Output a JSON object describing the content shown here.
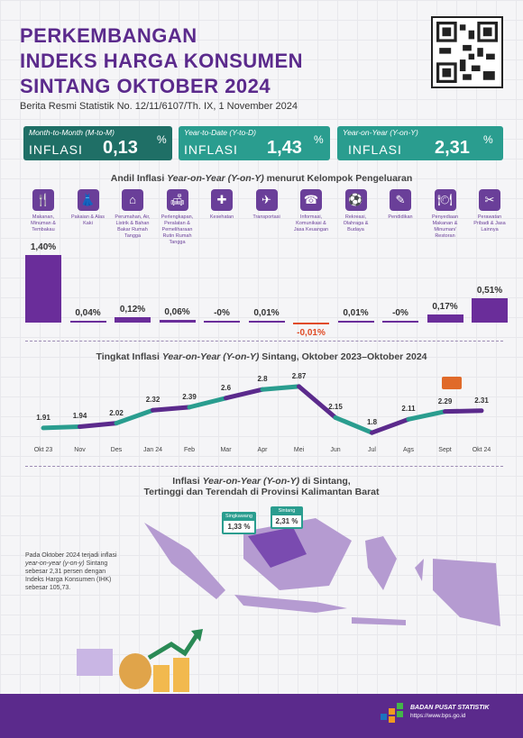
{
  "title": {
    "line1": "PERKEMBANGAN",
    "line2": "INDEKS HARGA KONSUMEN",
    "line3": "SINTANG OKTOBER 2024"
  },
  "subtitle": "Berita Resmi Statistik No. 12/11/6107/Th. IX, 1 November 2024",
  "cards": [
    {
      "label": "Month-to-Month (M-to-M)",
      "word": "INFLASI",
      "value": "0,13",
      "unit": "%"
    },
    {
      "label": "Year-to-Date (Y-to-D)",
      "word": "INFLASI",
      "value": "1,43",
      "unit": "%"
    },
    {
      "label": "Year-on-Year (Y-on-Y)",
      "word": "INFLASI",
      "value": "2,31",
      "unit": "%"
    }
  ],
  "andil_title_pre": "Andil Inflasi ",
  "andil_title_em": "Year-on-Year (Y-on-Y)",
  "andil_title_post": " menurut Kelompok Pengeluaran",
  "chart_data": [
    {
      "type": "bar",
      "categories": [
        "Makanan, Minuman & Tembakau",
        "Pakaian & Alas Kaki",
        "Perumahan, Air, Listrik & Bahan Bakar Rumah Tangga",
        "Perlengkapan, Peralatan & Pemeliharaan Rutin Rumah Tangga",
        "Kesehatan",
        "Transportasi",
        "Informasi, Komunikasi & Jasa Keuangan",
        "Rekreasi, Olahraga & Budaya",
        "Pendidikan",
        "Penyediaan Makanan & Minuman/ Restoran",
        "Perawatan Pribadi & Jasa Lainnya"
      ],
      "values": [
        1.4,
        0.04,
        0.12,
        0.06,
        0,
        0.01,
        -0.01,
        0.01,
        0,
        0.17,
        0.51
      ],
      "labels": [
        "1,40%",
        "0,04%",
        "0,12%",
        "0,06%",
        "-0%",
        "0,01%",
        "-0,01%",
        "0,01%",
        "-0%",
        "0,17%",
        "0,51%"
      ]
    },
    {
      "type": "line",
      "title_pre": "Tingkat Inflasi ",
      "title_em": "Year-on-Year (Y-on-Y)",
      "title_post": " Sintang, Oktober 2023–Oktober 2024",
      "x": [
        "Okt 23",
        "Nov",
        "Des",
        "Jan 24",
        "Feb",
        "Mar",
        "Apr",
        "Mei",
        "Jun",
        "Jul",
        "Ags",
        "Sept",
        "Okt 24"
      ],
      "values": [
        1.91,
        1.94,
        2.02,
        2.32,
        2.39,
        2.6,
        2.8,
        2.87,
        2.15,
        1.8,
        2.11,
        2.29,
        2.31
      ],
      "labels": [
        "1.91",
        "1.94",
        "2.02",
        "2.32",
        "2.39",
        "2.6",
        "2.8",
        "2.87",
        "2.15",
        "1.8",
        "2.11",
        "2.29",
        "2.31"
      ]
    }
  ],
  "map_title_pre": "Inflasi ",
  "map_title_em": "Year-on-Year (Y-on-Y)",
  "map_title_post": " di Sintang,",
  "map_title2": "Tertinggi dan Terendah di Provinsi Kalimantan Barat",
  "bubbles": [
    {
      "name": "Singkawang",
      "value": "1,33 %"
    },
    {
      "name": "Sintang",
      "value": "2,31 %"
    }
  ],
  "note": {
    "p1": "Pada Oktober 2024 terjadi inflasi ",
    "em": "year-on-year (y-on-y)",
    "p2": " Sintang sebesar 2,31 persen dengan Indeks Harga Konsumen (IHK) sebesar 105,73."
  },
  "footer": {
    "org": "BADAN PUSAT STATISTIK",
    "url": "https://www.bps.go.id"
  },
  "colors": {
    "purple": "#5b2a8c",
    "teal": "#2a9d8f",
    "negative": "#e04a24"
  }
}
